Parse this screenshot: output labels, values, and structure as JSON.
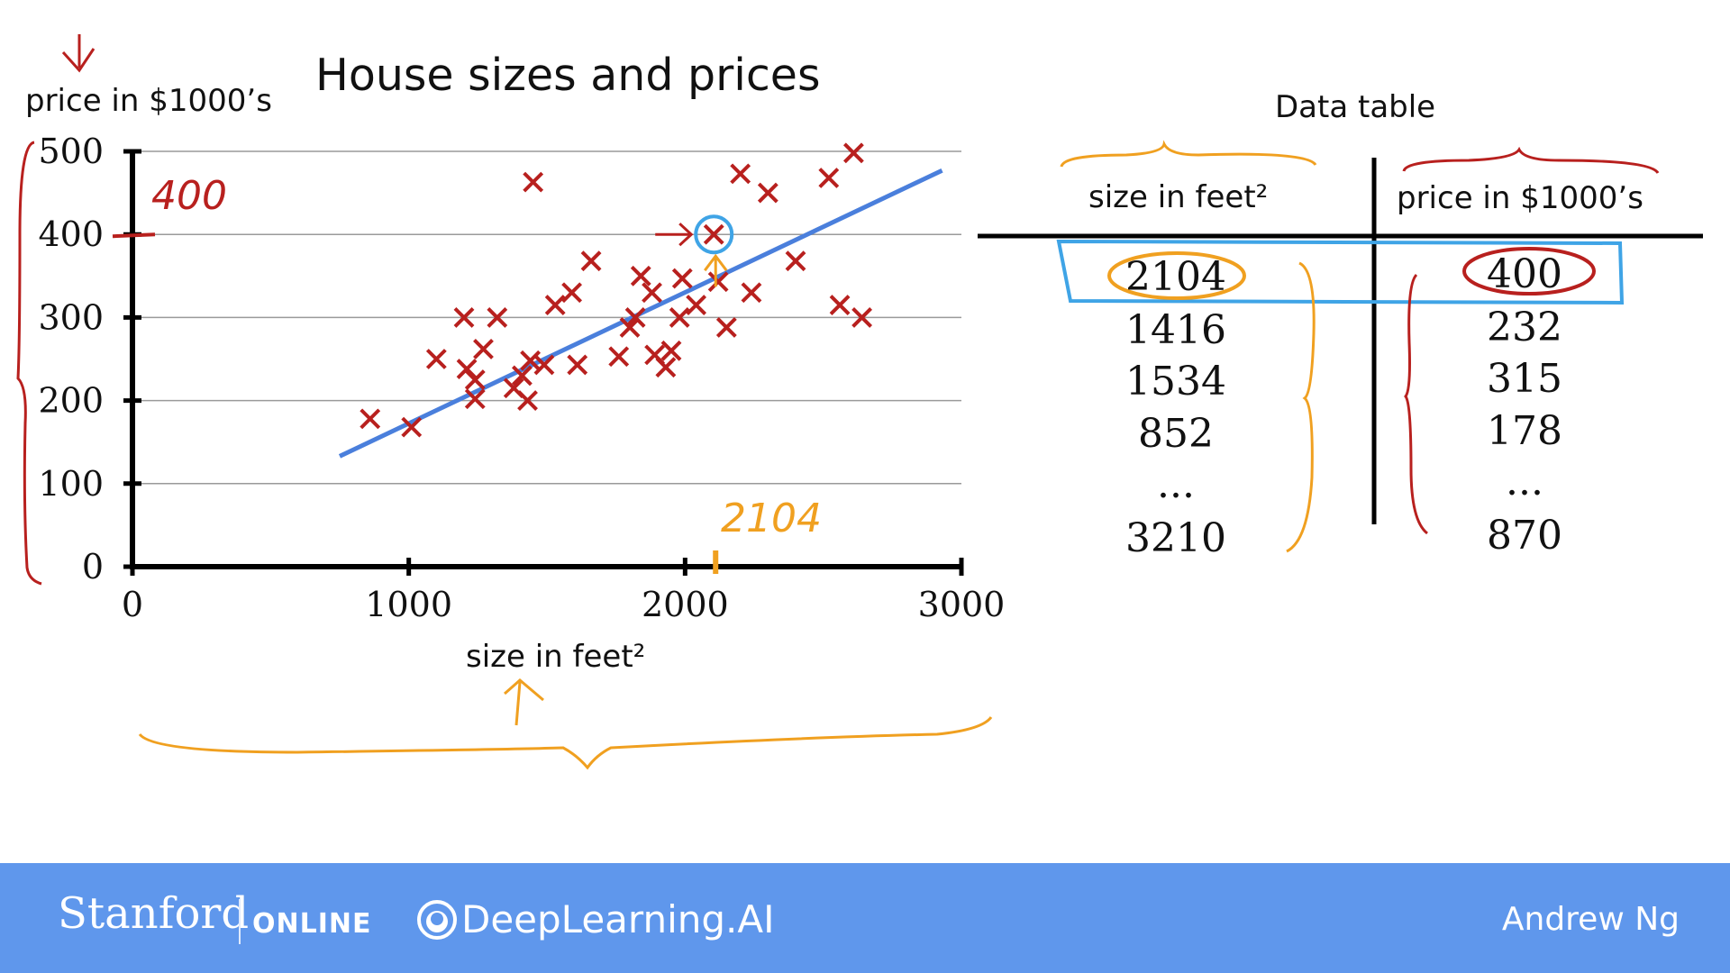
{
  "chart_data": {
    "type": "scatter",
    "title": "House sizes and prices",
    "xlabel": "size in feet²",
    "ylabel": "price in $1000’s",
    "xlim": [
      0,
      3000
    ],
    "ylim": [
      0,
      500
    ],
    "xticks": [
      0,
      1000,
      2000,
      3000
    ],
    "yticks": [
      0,
      100,
      200,
      300,
      400,
      500
    ],
    "grid": true,
    "points": [
      [
        860,
        178
      ],
      [
        1010,
        168
      ],
      [
        1100,
        250
      ],
      [
        1200,
        300
      ],
      [
        1210,
        238
      ],
      [
        1240,
        225
      ],
      [
        1240,
        202
      ],
      [
        1270,
        262
      ],
      [
        1320,
        300
      ],
      [
        1380,
        215
      ],
      [
        1410,
        230
      ],
      [
        1430,
        200
      ],
      [
        1440,
        248
      ],
      [
        1450,
        463
      ],
      [
        1490,
        243
      ],
      [
        1530,
        315
      ],
      [
        1590,
        330
      ],
      [
        1610,
        243
      ],
      [
        1660,
        368
      ],
      [
        1760,
        253
      ],
      [
        1800,
        288
      ],
      [
        1820,
        300
      ],
      [
        1840,
        350
      ],
      [
        1880,
        330
      ],
      [
        1890,
        255
      ],
      [
        1930,
        240
      ],
      [
        1950,
        260
      ],
      [
        1980,
        300
      ],
      [
        1990,
        347
      ],
      [
        2040,
        315
      ],
      [
        2104,
        400
      ],
      [
        2120,
        343
      ],
      [
        2150,
        288
      ],
      [
        2200,
        473
      ],
      [
        2240,
        330
      ],
      [
        2300,
        450
      ],
      [
        2400,
        368
      ],
      [
        2520,
        468
      ],
      [
        2560,
        315
      ],
      [
        2610,
        498
      ],
      [
        2640,
        300
      ]
    ],
    "fit_line": [
      [
        750,
        133
      ],
      [
        2930,
        477
      ]
    ],
    "highlight_point": [
      2104,
      400
    ],
    "annotations": {
      "y_value": "400",
      "x_value": "2104"
    }
  },
  "table": {
    "title": "Data table",
    "headers": [
      "size in feet²",
      "price in $1000’s"
    ],
    "rows": [
      [
        "2104",
        "400"
      ],
      [
        "1416",
        "232"
      ],
      [
        "1534",
        "315"
      ],
      [
        "852",
        "178"
      ],
      [
        "...",
        "..."
      ],
      [
        "3210",
        "870"
      ]
    ]
  },
  "footer": {
    "stanford": "Stanford",
    "online": "ONLINE",
    "deeplearning": "DeepLearning.AI",
    "presenter": "Andrew Ng"
  },
  "colors": {
    "marker": "#b8201e",
    "fit_line": "#4a7fdc",
    "highlight_circle": "#3fa4e6",
    "annotation_red": "#b8201e",
    "annotation_orange": "#f0a020",
    "footer_bg": "#5f97ec"
  }
}
